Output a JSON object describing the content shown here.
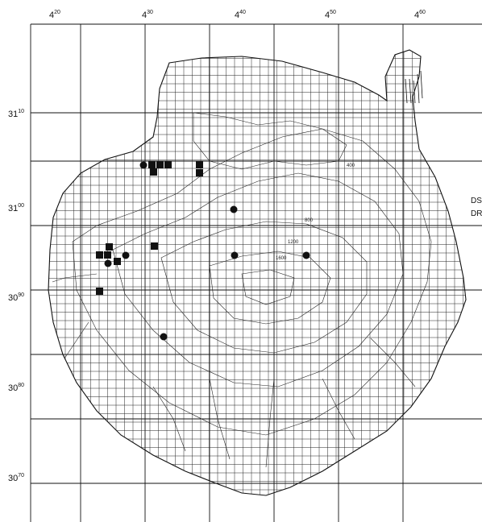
{
  "map": {
    "x_labels": [
      {
        "main": "4",
        "sup": "20"
      },
      {
        "main": "4",
        "sup": "30"
      },
      {
        "main": "4",
        "sup": "40"
      },
      {
        "main": "4",
        "sup": "50"
      },
      {
        "main": "4",
        "sup": "60"
      }
    ],
    "y_labels": [
      {
        "main": "31",
        "sup": "10"
      },
      {
        "main": "31",
        "sup": "00"
      },
      {
        "main": "30",
        "sup": "90"
      },
      {
        "main": "30",
        "sup": "80"
      },
      {
        "main": "30",
        "sup": "70"
      }
    ],
    "contour_labels": [
      "400",
      "800",
      "1200",
      "1600"
    ],
    "legend": [
      "DS",
      "DR"
    ],
    "symbols": {
      "square": "filled-square-marker",
      "circle": "filled-circle-marker"
    },
    "colors": {
      "ink": "#111111",
      "background": "#ffffff"
    }
  }
}
